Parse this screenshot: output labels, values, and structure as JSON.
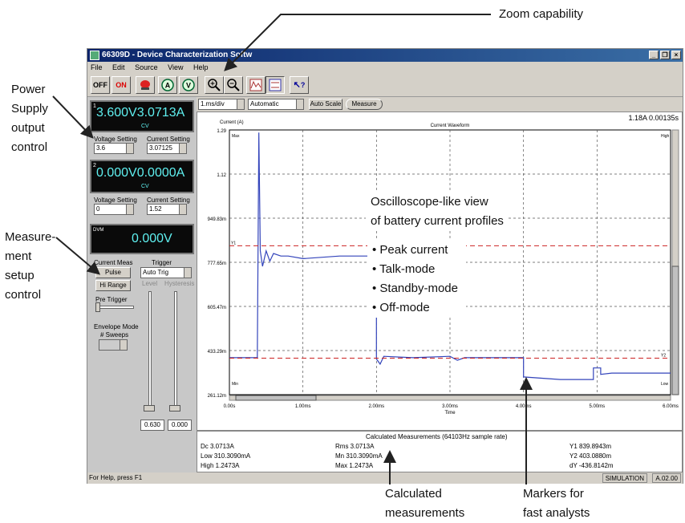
{
  "callouts": {
    "zoom": "Zoom capability",
    "power_supply": [
      "Power",
      "Supply",
      "output",
      "control"
    ],
    "measurement": [
      "Measure-",
      "ment",
      "setup",
      "control"
    ],
    "oscilloscope": [
      "Oscilloscope-like view",
      "of battery current profiles"
    ],
    "bullets": [
      "Peak current",
      "Talk-mode",
      "Standby-mode",
      "Off-mode"
    ],
    "calculated": [
      "Calculated",
      "measurements"
    ],
    "markers": [
      "Markers for",
      "fast analysts"
    ]
  },
  "window": {
    "title": "66309D - Device Characterization Softw",
    "min": "_",
    "restore": "❐",
    "close": "×"
  },
  "menu": [
    "File",
    "Edit",
    "Source",
    "View",
    "Help"
  ],
  "toolbar": {
    "off": "OFF",
    "on": "ON",
    "stop_icon": "stop-icon",
    "ammeter": "A",
    "voltmeter": "V",
    "zoom_in": "+",
    "zoom_out": "−",
    "help": "?"
  },
  "supply1": {
    "index": "1",
    "reading": "3.600V3.0713A",
    "mode": "CV",
    "voltage_label": "Voltage Setting",
    "current_label": "Current Setting",
    "voltage": "3.6",
    "current": "3.07125"
  },
  "supply2": {
    "index": "2",
    "reading": "0.000V0.0000A",
    "mode": "CV",
    "voltage_label": "Voltage Setting",
    "current_label": "Current Setting",
    "voltage": "0",
    "current": "1.52"
  },
  "dvm": {
    "label": "DVM",
    "reading": "0.000V"
  },
  "meas_setup": {
    "current_meas": "Current Meas",
    "pulse": "Pulse",
    "hi_range": "Hi Range",
    "trigger": "Trigger",
    "trigger_mode": "Auto Trig",
    "level": "Level",
    "hysteresis": "Hysteresis",
    "pre_trigger": "Pre Trigger",
    "envelope": "Envelope Mode",
    "sweeps": "# Sweeps",
    "level_value": "0.630",
    "hyst_value": "0.000"
  },
  "plot": {
    "timebase": "1.ms/div",
    "trig_mode": "Automatic",
    "autoscale": "Auto Scale",
    "measure": "Measure",
    "readout": "1.18A  0.00135s",
    "ylabel": "Current (A)",
    "title": "Current Waveform",
    "xlabel": "Time",
    "y_ticks": [
      "1.29",
      "1.12",
      "949.83m",
      "777.65m",
      "605.47m",
      "433.29m",
      "261.12m"
    ],
    "x_ticks": [
      "0.00s",
      "1.00ms",
      "2.00ms",
      "3.00ms",
      "4.00ms",
      "5.00ms",
      "6.00ms"
    ],
    "max_label": "Max",
    "min_label": "Min",
    "high_label": "High",
    "low_label": "Low",
    "y1_label": "Y1",
    "y2_label": "Y2",
    "trace_color": "#3344bb",
    "marker_color": "#cc2222"
  },
  "chart_data": {
    "type": "line",
    "title": "Current Waveform",
    "xlabel": "Time",
    "ylabel": "Current (A)",
    "xlim": [
      0,
      6
    ],
    "ylim": [
      0.26112,
      1.29
    ],
    "series": [
      {
        "x": [
          0,
          0.38,
          0.4,
          0.42,
          0.45,
          0.5,
          0.55,
          0.6,
          0.7,
          0.8,
          1.0,
          1.5,
          2.0,
          2.0,
          2.05,
          2.1,
          2.5,
          3.0,
          3.1,
          3.2,
          3.5,
          3.9,
          4.0,
          4.0,
          4.5,
          4.8,
          4.95,
          4.95,
          5.05,
          5.05,
          5.2,
          6.0
        ],
        "y": [
          0.405,
          0.405,
          1.28,
          0.82,
          0.76,
          0.82,
          0.78,
          0.81,
          0.8,
          0.8,
          0.79,
          0.8,
          0.8,
          0.4,
          0.38,
          0.41,
          0.405,
          0.41,
          0.395,
          0.405,
          0.405,
          0.405,
          0.405,
          0.33,
          0.32,
          0.32,
          0.32,
          0.365,
          0.365,
          0.34,
          0.345,
          0.345
        ]
      }
    ],
    "markers": {
      "Y1": 0.8398943,
      "Y2": 0.403088
    }
  },
  "measurements": {
    "header": "Calculated Measurements    (64103Hz sample rate)",
    "dc": "Dc  3.0713A",
    "low": "Low  310.3090mA",
    "high": "High  1.2473A",
    "rms": "Rms  3.0713A",
    "mn": "Mn  310.3090mA",
    "mx": "Max  1.2473A",
    "y1": "Y1  839.8943m",
    "y2": "Y2  403.0880m",
    "dy": "dY  -436.8142m"
  },
  "status": {
    "help": "For Help, press F1",
    "simulation": "SIMULATION",
    "version": "A.02.00"
  }
}
